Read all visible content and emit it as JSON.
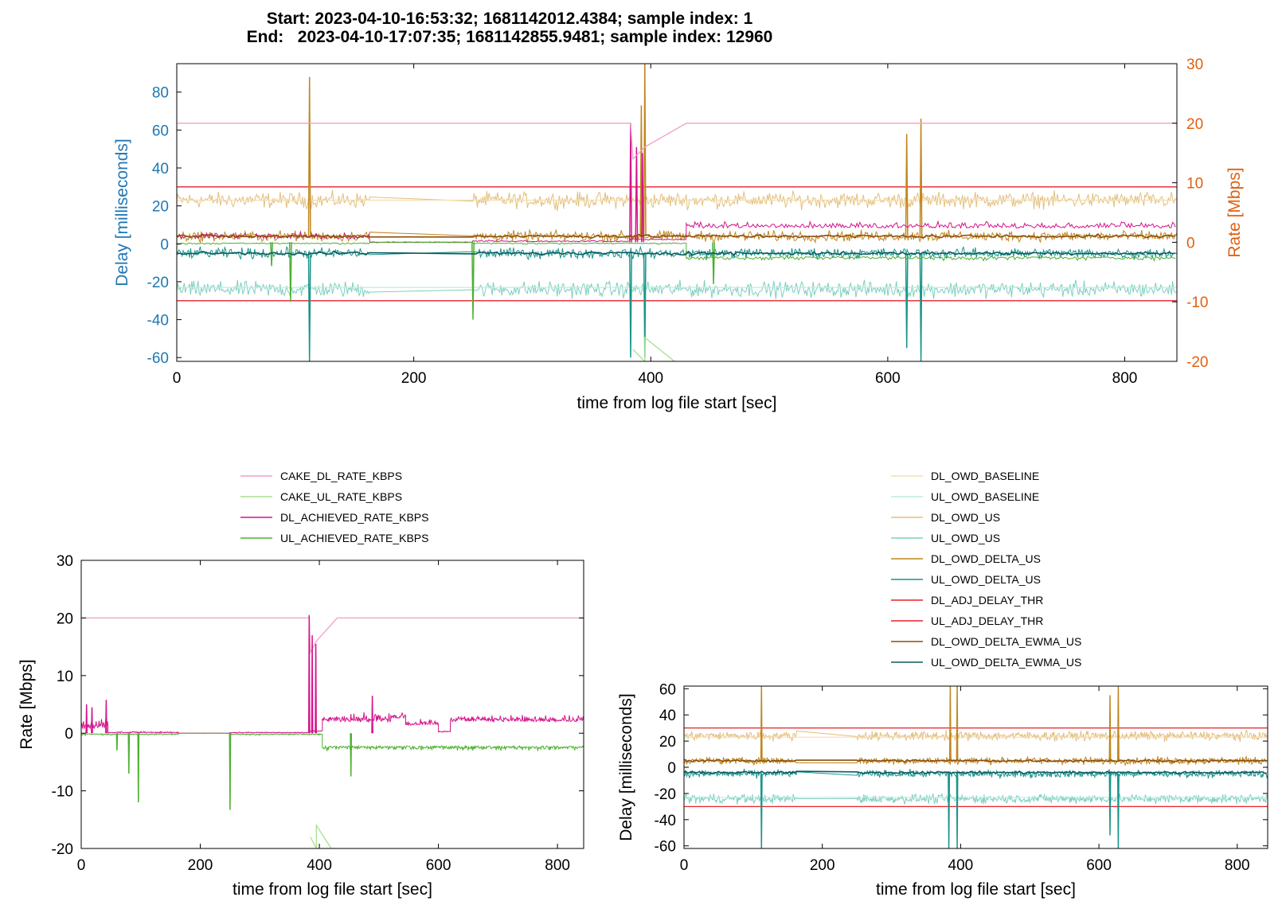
{
  "figure": {
    "title_start": "Start: 2023-04-10-16:53:32; 1681142012.4384; sample index: 1",
    "title_end": "End:   2023-04-10-17:07:35; 1681142855.9481; sample index: 12960"
  },
  "colors": {
    "CAKE_DL_RATE_KBPS": "#f0a0c8",
    "CAKE_UL_RATE_KBPS": "#a8e090",
    "DL_ACHIEVED_RATE_KBPS": "#d4148c",
    "UL_ACHIEVED_RATE_KBPS": "#4cb030",
    "DL_OWD_BASELINE": "#f5ddb0",
    "UL_OWD_BASELINE": "#c0ece2",
    "DL_OWD_US": "#e2bf7e",
    "UL_OWD_US": "#7dcfbe",
    "DL_OWD_DELTA_US": "#c0861e",
    "UL_OWD_DELTA_US": "#1a948a",
    "DL_ADJ_DELAY_THR": "#e8202a",
    "UL_ADJ_DELAY_THR": "#e8202a",
    "DL_OWD_DELTA_EWMA_US": "#8a4e0a",
    "UL_OWD_DELTA_EWMA_US": "#0a5a60",
    "delay_axis": "#1f77b4",
    "rate_axis": "#e06010"
  },
  "chart_data": [
    {
      "id": "combined",
      "type": "line",
      "xlabel": "time from log file start [sec]",
      "ylabel_left": "Delay [milliseconds]",
      "ylabel_right": "Rate [Mbps]",
      "xlim": [
        0,
        844
      ],
      "ylim_left": [
        -62,
        95
      ],
      "ylim_right": [
        -20,
        30
      ],
      "xticks": [
        "0",
        "200",
        "400",
        "600",
        "800"
      ],
      "yticks_left": [
        "80",
        "60",
        "40",
        "20",
        "0",
        "-20",
        "-40",
        "-60"
      ],
      "yticks_right": [
        "30",
        "20",
        "10",
        "0",
        "-10",
        "-20"
      ],
      "grid": false,
      "note_series": "series approximated from the plotted traces (noisy signals rendered as banded noise)",
      "series": {
        "CAKE_DL_RATE_KBPS": {
          "axis": "rate_mbps",
          "points": [
            [
              0,
              20
            ],
            [
              383,
              20
            ],
            [
              385,
              14
            ],
            [
              395,
              16
            ],
            [
              430,
              20
            ],
            [
              844,
              20
            ]
          ]
        },
        "CAKE_UL_RATE_KBPS": {
          "axis": "rate_mbps",
          "points": [
            [
              385,
              -18
            ],
            [
              395,
              -20
            ],
            [
              395,
              -16
            ],
            [
              420,
              -20
            ]
          ]
        },
        "DL_ACHIEVED_RATE_KBPS": {
          "axis": "rate_mbps",
          "segments": [
            [
              0,
              163
            ],
            [
              250,
              383
            ],
            [
              383,
              395
            ],
            [
              430,
              844
            ]
          ],
          "level": [
            0.6,
            0.1,
            0,
            2.2
          ],
          "noise": [
            1.5,
            0.3,
            0,
            1.5
          ]
        },
        "UL_ACHIEVED_RATE_KBPS": {
          "axis": "rate_mbps",
          "segments": [
            [
              0,
              163
            ],
            [
              250,
              383
            ],
            [
              430,
              844
            ]
          ],
          "level": [
            -0.1,
            -0.1,
            -2.3
          ],
          "noise": [
            0.4,
            0.4,
            0.8
          ]
        },
        "DL_OWD_BASELINE": {
          "axis": "delay_ms",
          "points": [
            [
              0,
              23
            ],
            [
              844,
              23
            ]
          ]
        },
        "UL_OWD_BASELINE": {
          "axis": "delay_ms",
          "points": [
            [
              0,
              -23
            ],
            [
              844,
              -23
            ]
          ]
        },
        "DL_OWD_US": {
          "axis": "delay_ms",
          "band": [
            22,
            8
          ]
        },
        "UL_OWD_US": {
          "axis": "delay_ms",
          "band": [
            -24,
            8
          ]
        },
        "DL_OWD_DELTA_US": {
          "axis": "delay_ms",
          "band": [
            4,
            5
          ],
          "spikes": [
            [
              112,
              88
            ],
            [
              392,
              73
            ],
            [
              395,
              95
            ],
            [
              616,
              58
            ],
            [
              628,
              66
            ]
          ]
        },
        "UL_OWD_DELTA_US": {
          "axis": "delay_ms",
          "band": [
            -6,
            5
          ],
          "spikes": [
            [
              112,
              -62
            ],
            [
              383,
              -60
            ],
            [
              395,
              -60
            ],
            [
              616,
              -55
            ],
            [
              628,
              -62
            ]
          ]
        },
        "DL_ADJ_DELAY_THR": {
          "axis": "delay_ms",
          "points": [
            [
              0,
              30
            ],
            [
              844,
              30
            ]
          ]
        },
        "UL_ADJ_DELAY_THR": {
          "axis": "delay_ms",
          "points": [
            [
              0,
              -30
            ],
            [
              844,
              -30
            ]
          ]
        },
        "DL_OWD_DELTA_EWMA_US": {
          "axis": "delay_ms",
          "band": [
            4,
            1.5
          ]
        },
        "UL_OWD_DELTA_EWMA_US": {
          "axis": "delay_ms",
          "band": [
            -5,
            1.5
          ]
        }
      }
    },
    {
      "id": "rate",
      "type": "line",
      "xlabel": "time from log file start [sec]",
      "ylabel": "Rate [Mbps]",
      "xlim": [
        0,
        844
      ],
      "ylim": [
        -20,
        30
      ],
      "xticks": [
        "0",
        "200",
        "400",
        "600",
        "800"
      ],
      "yticks": [
        "30",
        "20",
        "10",
        "0",
        "-10",
        "-20"
      ],
      "legend": [
        "CAKE_DL_RATE_KBPS",
        "CAKE_UL_RATE_KBPS",
        "DL_ACHIEVED_RATE_KBPS",
        "UL_ACHIEVED_RATE_KBPS"
      ],
      "legend_position": "top"
    },
    {
      "id": "delay",
      "type": "line",
      "xlabel": "time from log file start [sec]",
      "ylabel": "Delay [milliseconds]",
      "xlim": [
        0,
        844
      ],
      "ylim": [
        -62,
        62
      ],
      "xticks": [
        "0",
        "200",
        "400",
        "600",
        "800"
      ],
      "yticks": [
        "60",
        "40",
        "20",
        "0",
        "-20",
        "-40",
        "-60"
      ],
      "legend": [
        "DL_OWD_BASELINE",
        "UL_OWD_BASELINE",
        "DL_OWD_US",
        "UL_OWD_US",
        "DL_OWD_DELTA_US",
        "UL_OWD_DELTA_US",
        "DL_ADJ_DELAY_THR",
        "UL_ADJ_DELAY_THR",
        "DL_OWD_DELTA_EWMA_US",
        "UL_OWD_DELTA_EWMA_US"
      ],
      "legend_position": "top"
    }
  ]
}
